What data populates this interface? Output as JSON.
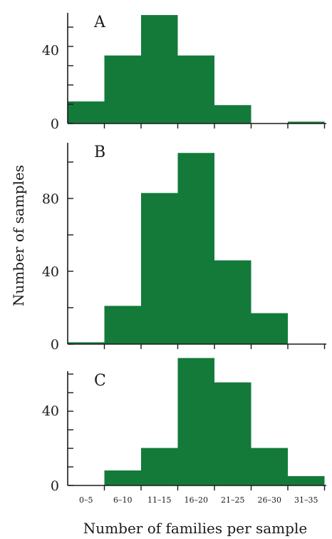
{
  "chart_data": {
    "type": "bar",
    "bar_color": "#137a3a",
    "xlabel": "Number of families per sample",
    "ylabel": "Number of samples",
    "categories": [
      "0–5",
      "6–10",
      "11–15",
      "16–20",
      "21–25",
      "26–30",
      "31–35"
    ],
    "panels": [
      {
        "name": "A",
        "values": [
          12,
          37,
          59,
          37,
          10,
          0,
          1
        ],
        "ylim": [
          0,
          60
        ],
        "yticks": [
          0,
          40
        ]
      },
      {
        "name": "B",
        "values": [
          1,
          21,
          83,
          105,
          46,
          17,
          0
        ],
        "ylim": [
          0,
          110
        ],
        "yticks": [
          0,
          40,
          80
        ]
      },
      {
        "name": "C",
        "values": [
          0,
          8,
          20,
          68,
          55,
          20,
          5
        ],
        "ylim": [
          0,
          66
        ],
        "yticks": [
          0,
          40
        ]
      }
    ]
  }
}
